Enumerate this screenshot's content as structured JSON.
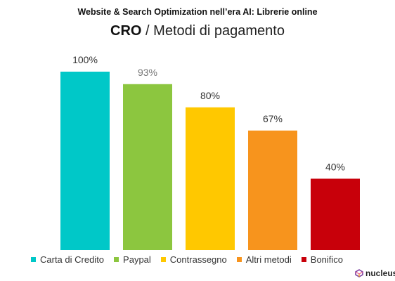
{
  "header": {
    "suptitle": "Website & Search Optimization nell’era AI: Librerie online",
    "title_strong": "CRO",
    "title_rest": " / Metodi di pagamento"
  },
  "chart_data": {
    "type": "bar",
    "categories": [
      "Carta di Credito",
      "Paypal",
      "Contrassegno",
      "Altri metodi",
      "Bonifico"
    ],
    "values": [
      100,
      93,
      80,
      67,
      40
    ],
    "value_labels": [
      "100%",
      "93%",
      "80%",
      "67%",
      "40%"
    ],
    "colors": [
      "#00C8C8",
      "#8CC63F",
      "#FFC800",
      "#F7941D",
      "#C8000A"
    ],
    "ylim": [
      0,
      100
    ],
    "legend_position": "bottom",
    "grid": false
  },
  "brand": {
    "name": "nucleus",
    "icon": "nucleus-logo-icon"
  }
}
